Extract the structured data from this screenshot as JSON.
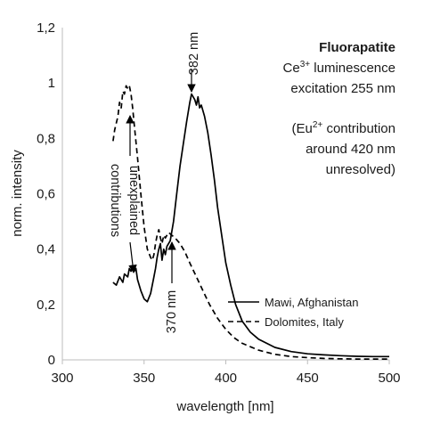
{
  "chart_data": {
    "type": "line",
    "title": "Fluorapatite",
    "subtitle_lines": [
      "luminescence",
      "excitation 255 nm",
      "(Eu",
      "contribution",
      "around 420 nm",
      "unresolved)"
    ],
    "subtitle_ion": {
      "base": "Ce",
      "sup": "3+"
    },
    "subtitle_eu_sup": "2+",
    "xlabel": "wavelength [nm]",
    "ylabel": "norm. intensity",
    "xlim": [
      300,
      500
    ],
    "ylim": [
      0,
      1.2
    ],
    "x_ticks": [
      "300",
      "350",
      "400",
      "450",
      "500"
    ],
    "y_ticks": [
      "0",
      "0,2",
      "0,4",
      "0,6",
      "0,8",
      "1",
      "1,2"
    ],
    "legend_position": "bottom-right",
    "annotations": [
      "382 nm",
      "370 nm",
      "unexplained",
      "contributions"
    ],
    "series": [
      {
        "name": "Mawi, Afghanistan",
        "style": "solid",
        "color": "#000000",
        "x": [
          331,
          333,
          335,
          337,
          338,
          340,
          341,
          342,
          343,
          344,
          345,
          346,
          348,
          350,
          352,
          354,
          356,
          357,
          358,
          359,
          360,
          361,
          362,
          363,
          364,
          366,
          368,
          370,
          372,
          374,
          376,
          378,
          379,
          380,
          381,
          382,
          383,
          384,
          385,
          387,
          389,
          391,
          393,
          395,
          398,
          400,
          403,
          406,
          410,
          415,
          420,
          425,
          430,
          440,
          450,
          460,
          470,
          480,
          490,
          500
        ],
        "y": [
          0.28,
          0.27,
          0.3,
          0.28,
          0.31,
          0.3,
          0.33,
          0.32,
          0.34,
          0.32,
          0.33,
          0.29,
          0.25,
          0.22,
          0.21,
          0.24,
          0.3,
          0.33,
          0.37,
          0.4,
          0.42,
          0.36,
          0.4,
          0.38,
          0.41,
          0.43,
          0.5,
          0.6,
          0.7,
          0.78,
          0.86,
          0.93,
          0.96,
          0.95,
          0.94,
          0.92,
          0.95,
          0.91,
          0.92,
          0.88,
          0.82,
          0.74,
          0.65,
          0.55,
          0.43,
          0.35,
          0.27,
          0.2,
          0.14,
          0.1,
          0.075,
          0.06,
          0.045,
          0.03,
          0.022,
          0.018,
          0.015,
          0.013,
          0.012,
          0.012
        ]
      },
      {
        "name": "Dolomites, Italy",
        "style": "dashed",
        "color": "#000000",
        "x": [
          331,
          332,
          334,
          335,
          336,
          337,
          338,
          339,
          340,
          341,
          342,
          343,
          344,
          346,
          348,
          350,
          352,
          354,
          355,
          356,
          357,
          358,
          359,
          360,
          361,
          362,
          363,
          364,
          365,
          367,
          369,
          372,
          375,
          378,
          382,
          386,
          390,
          395,
          400,
          405,
          410,
          420,
          430,
          440,
          450,
          460,
          470,
          480,
          490,
          500
        ],
        "y": [
          0.79,
          0.83,
          0.88,
          0.93,
          0.91,
          0.97,
          0.96,
          0.99,
          0.98,
          0.99,
          0.96,
          0.91,
          0.85,
          0.73,
          0.6,
          0.48,
          0.4,
          0.37,
          0.36,
          0.38,
          0.42,
          0.45,
          0.47,
          0.44,
          0.42,
          0.45,
          0.44,
          0.45,
          0.46,
          0.45,
          0.44,
          0.42,
          0.39,
          0.35,
          0.3,
          0.25,
          0.2,
          0.15,
          0.11,
          0.08,
          0.06,
          0.035,
          0.02,
          0.012,
          0.008,
          0.005,
          0.004,
          0.003,
          0.003,
          0.003
        ]
      }
    ]
  }
}
